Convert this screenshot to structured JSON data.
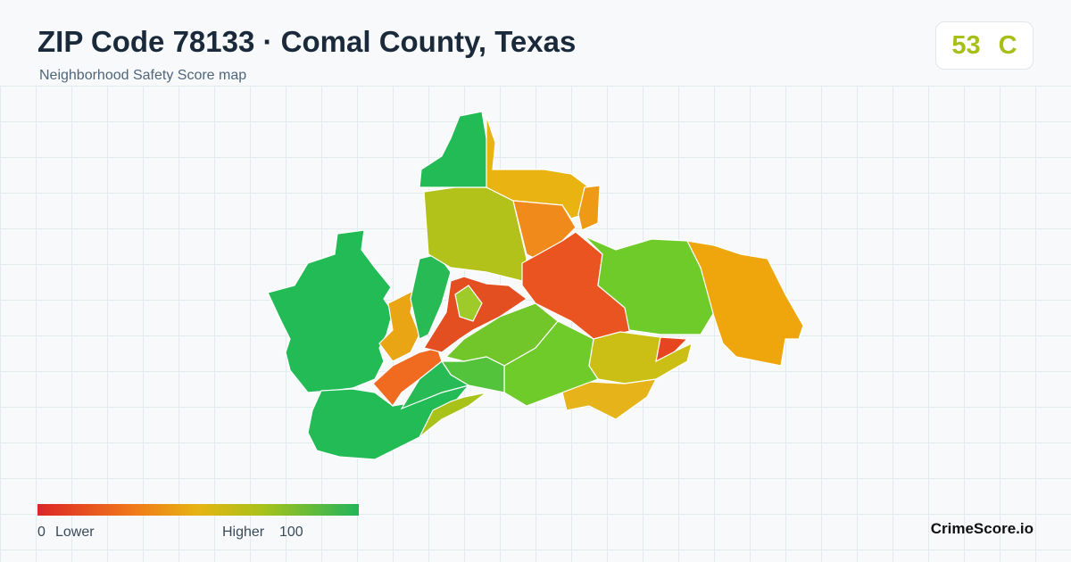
{
  "header": {
    "title": "ZIP Code 78133 · Comal County, Texas",
    "subtitle": "Neighborhood Safety Score map"
  },
  "score": {
    "value": 53,
    "grade": "C"
  },
  "legend": {
    "min": 0,
    "min_label": "Lower",
    "max_label": "Higher",
    "max": 100
  },
  "brand": "CrimeScore.io"
}
